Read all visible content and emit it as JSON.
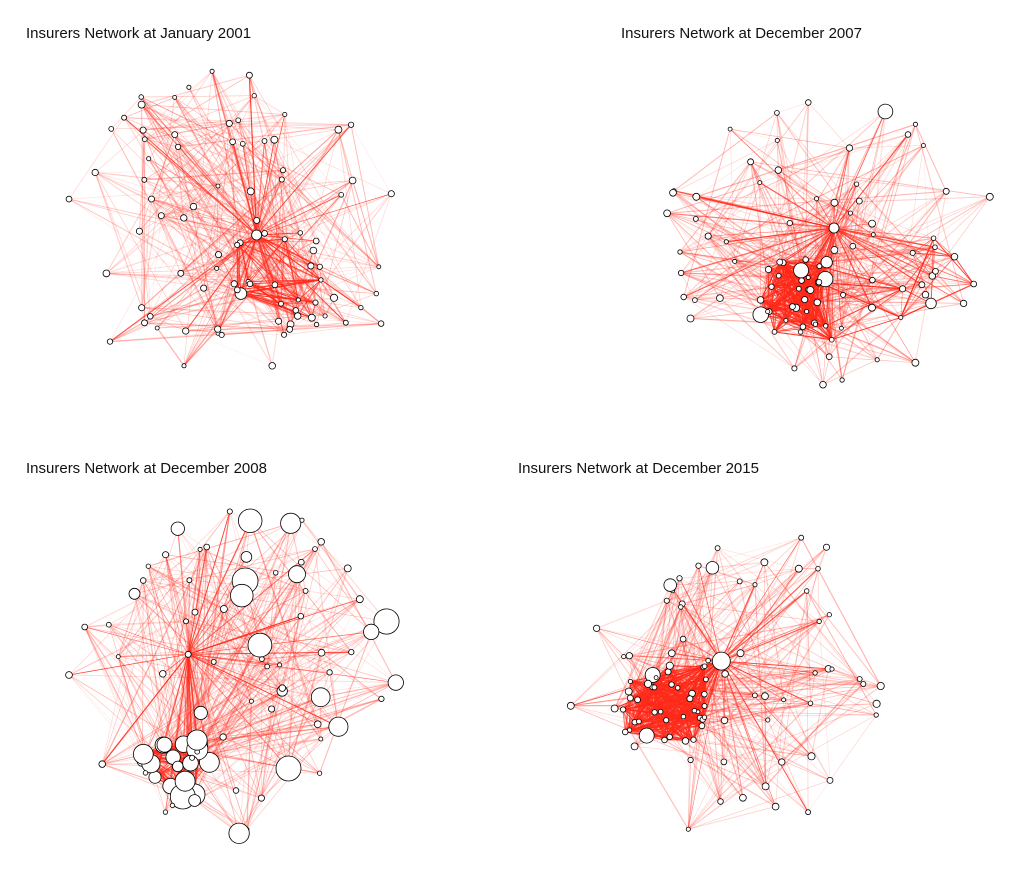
{
  "networks": [
    {
      "title": "Insurers Network at January 2001",
      "edge_color": "#ff2a1a",
      "pattern": "uniform"
    },
    {
      "title": "Insurers Network at December 2007",
      "edge_color": "#ff2a1a",
      "pattern": "hub-cluster"
    },
    {
      "title": "Insurers Network at December 2008",
      "edge_color": "#ff2a1a",
      "pattern": "dense-cluster"
    },
    {
      "title": "Insurers Network at December 2015",
      "edge_color": "#ff2a1a",
      "pattern": "left-cluster"
    }
  ],
  "node_fill": "#ffffff",
  "node_stroke": "#000000"
}
